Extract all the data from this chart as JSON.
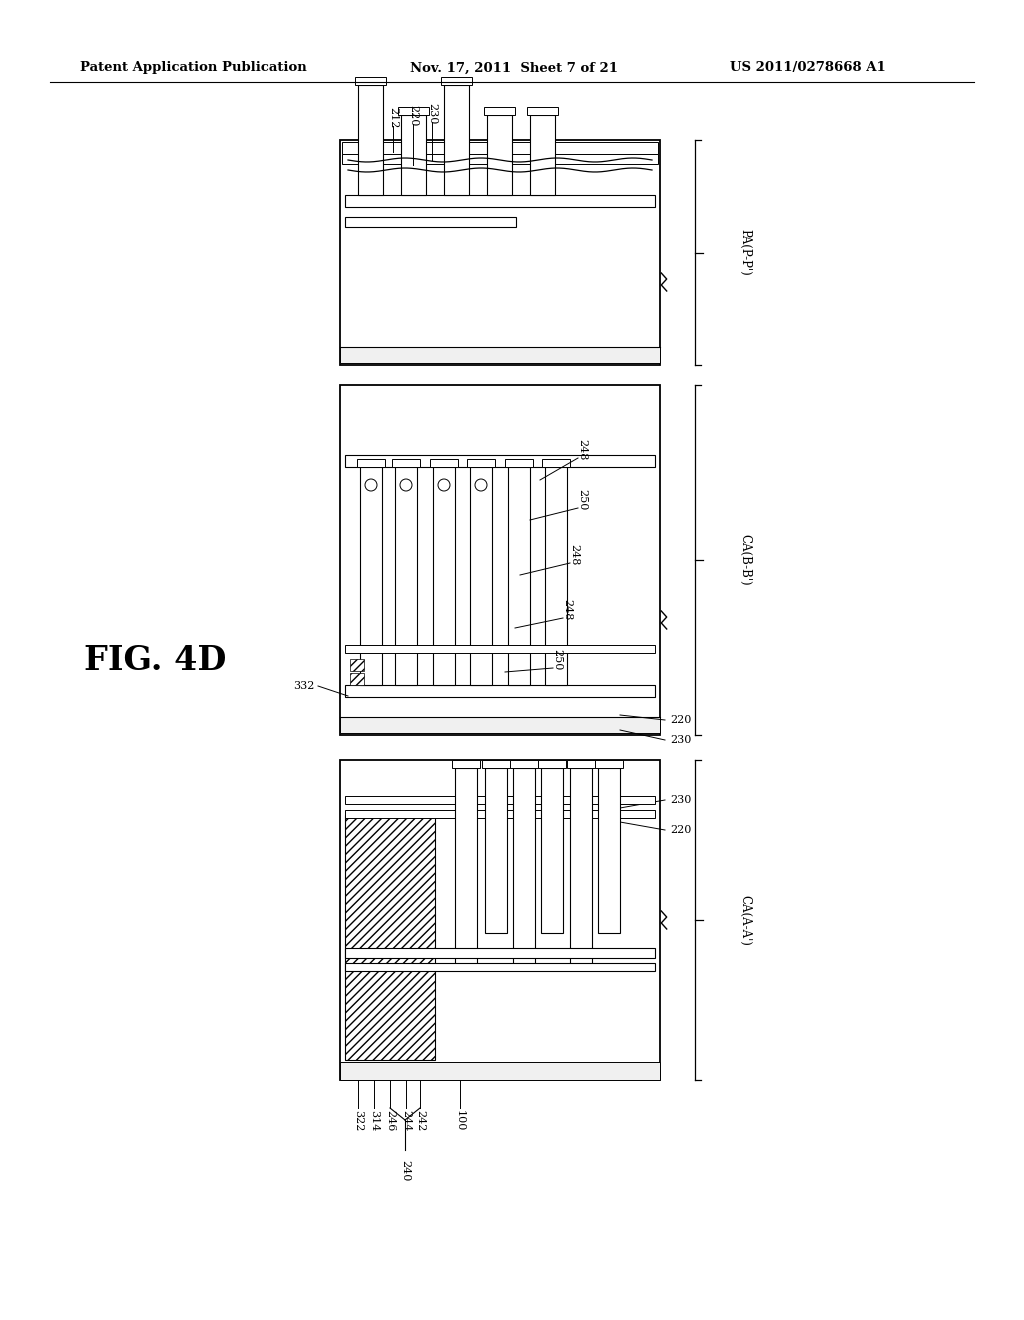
{
  "bg_color": "#ffffff",
  "header_left": "Patent Application Publication",
  "header_center": "Nov. 17, 2011  Sheet 7 of 21",
  "header_right": "US 2011/0278668 A1",
  "fig_label": "FIG. 4D",
  "line_color": "#000000"
}
